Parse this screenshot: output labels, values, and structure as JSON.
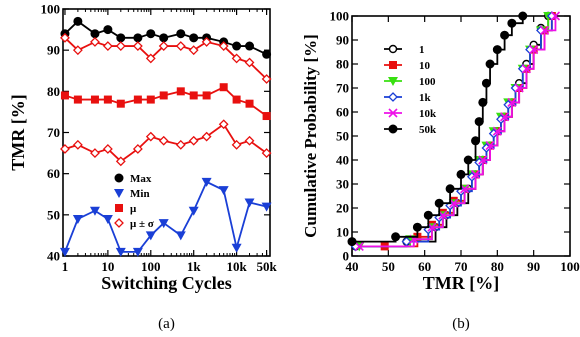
{
  "chart_data": [
    {
      "type": "line",
      "panel_label": "(a)",
      "xlabel": "Switching Cycles",
      "ylabel": "TMR [%]",
      "xscale": "log",
      "xlim": [
        0.9,
        60000
      ],
      "ylim": [
        40,
        100
      ],
      "xticks": [
        {
          "value": 1,
          "label": "1"
        },
        {
          "value": 10,
          "label": "10"
        },
        {
          "value": 100,
          "label": "100"
        },
        {
          "value": 1000,
          "label": "1k"
        },
        {
          "value": 10000,
          "label": "10k"
        },
        {
          "value": 50000,
          "label": "50k"
        }
      ],
      "yticks": [
        40,
        50,
        60,
        70,
        80,
        90,
        100
      ],
      "legend_position": "lower-center",
      "x": [
        1,
        2,
        5,
        10,
        20,
        50,
        100,
        200,
        500,
        1000,
        2000,
        5000,
        10000,
        20000,
        50000
      ],
      "series": [
        {
          "name": "Max",
          "color": "#000000",
          "marker": "circle-filled",
          "values": [
            94,
            97,
            94,
            95,
            93,
            93,
            94,
            93,
            94,
            93,
            93,
            92,
            91,
            91,
            89
          ]
        },
        {
          "name": "Min",
          "color": "#1a3fd6",
          "marker": "triangle-down",
          "values": [
            41,
            49,
            51,
            49,
            41,
            41,
            45,
            48,
            45,
            51,
            58,
            56,
            42,
            53,
            52
          ]
        },
        {
          "name": "μ",
          "color": "#e8100f",
          "marker": "square-filled",
          "values": [
            79,
            78,
            78,
            78,
            77,
            78,
            78,
            79,
            80,
            79,
            79,
            81,
            78,
            77,
            74
          ]
        },
        {
          "name": "μ ± σ",
          "color": "#e8100f",
          "marker": "diamond-open",
          "values": [
            93,
            90,
            92,
            91,
            91,
            91,
            88,
            91,
            91,
            90,
            92,
            91,
            88,
            87,
            83
          ]
        },
        {
          "name": "μ ± σ",
          "color": "#e8100f",
          "marker": "diamond-open",
          "hide_legend": true,
          "values": [
            66,
            67,
            65,
            66,
            63,
            66,
            69,
            68,
            67,
            68,
            69,
            72,
            67,
            68,
            65
          ]
        }
      ]
    },
    {
      "type": "line",
      "panel_label": "(b)",
      "xlabel": "TMR [%]",
      "ylabel": "Cumulative Probability [%]",
      "xlim": [
        40,
        100
      ],
      "ylim": [
        0,
        100
      ],
      "xticks": [
        40,
        50,
        60,
        70,
        80,
        90,
        100
      ],
      "yticks": [
        0,
        10,
        20,
        30,
        40,
        50,
        60,
        70,
        80,
        90,
        100
      ],
      "legend_position": "top-left",
      "series": [
        {
          "name": "1",
          "color": "#000000",
          "marker": "circle-open",
          "x": [
            41,
            55,
            63,
            66,
            69,
            72,
            74,
            76,
            78,
            80,
            82,
            84,
            86,
            88,
            90,
            92,
            94
          ],
          "y": [
            4,
            6,
            12,
            17,
            22,
            28,
            34,
            40,
            46,
            52,
            58,
            64,
            72,
            80,
            88,
            95,
            100
          ]
        },
        {
          "name": "10",
          "color": "#e8100f",
          "marker": "square-filled",
          "x": [
            49,
            58,
            62,
            65,
            68,
            71,
            74,
            76,
            78,
            80,
            82,
            84,
            86,
            88,
            90,
            93,
            95
          ],
          "y": [
            4,
            8,
            13,
            18,
            23,
            28,
            34,
            40,
            46,
            52,
            58,
            64,
            70,
            78,
            86,
            94,
            100
          ]
        },
        {
          "name": "100",
          "color": "#38e010",
          "marker": "triangle-down",
          "x": [
            42,
            56,
            62,
            65,
            68,
            71,
            73,
            75,
            77,
            79,
            81,
            83,
            85,
            87,
            89,
            92,
            94
          ],
          "y": [
            4,
            7,
            12,
            17,
            22,
            28,
            34,
            40,
            46,
            52,
            58,
            64,
            70,
            78,
            86,
            94,
            100
          ]
        },
        {
          "name": "1k",
          "color": "#1a3fd6",
          "marker": "diamond-open",
          "x": [
            41,
            55,
            61,
            64,
            67,
            70,
            73,
            75,
            77,
            79,
            81,
            83,
            85,
            87,
            89,
            92,
            95
          ],
          "y": [
            4,
            6,
            11,
            16,
            21,
            27,
            33,
            39,
            45,
            51,
            57,
            63,
            70,
            78,
            86,
            94,
            100
          ]
        },
        {
          "name": "10k",
          "color": "#ee10e8",
          "marker": "x",
          "x": [
            42,
            57,
            62,
            65,
            68,
            71,
            74,
            76,
            78,
            80,
            82,
            84,
            86,
            88,
            90,
            93,
            96
          ],
          "y": [
            4,
            7,
            12,
            17,
            22,
            28,
            34,
            40,
            46,
            52,
            58,
            64,
            70,
            78,
            86,
            94,
            100
          ]
        },
        {
          "name": "50k",
          "color": "#000000",
          "marker": "circle-filled",
          "x": [
            40,
            52,
            58,
            61,
            64,
            67,
            70,
            72,
            74,
            75,
            76,
            77,
            78,
            80,
            82,
            84,
            87
          ],
          "y": [
            6,
            8,
            12,
            17,
            22,
            28,
            34,
            40,
            48,
            56,
            64,
            72,
            80,
            86,
            92,
            97,
            100
          ]
        }
      ]
    }
  ]
}
